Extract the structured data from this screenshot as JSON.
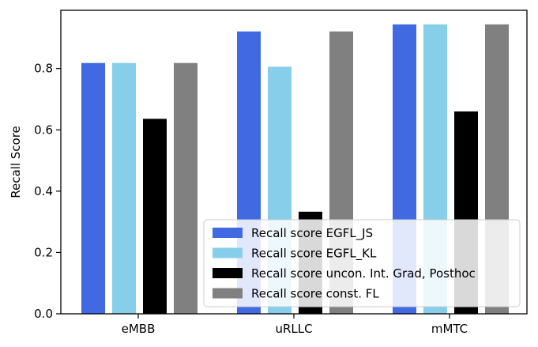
{
  "chart_data": {
    "type": "bar",
    "categories": [
      "eMBB",
      "uRLLC",
      "mMTC"
    ],
    "series": [
      {
        "name": "Recall score EGFL_JS",
        "color": "#4169e1",
        "values": [
          0.818,
          0.921,
          0.944
        ]
      },
      {
        "name": "Recall score EGFL_KL",
        "color": "#87ceeb",
        "values": [
          0.818,
          0.806,
          0.944
        ]
      },
      {
        "name": "Recall score uncon. Int. Grad, Posthoc",
        "color": "#000000",
        "values": [
          0.636,
          0.333,
          0.66
        ]
      },
      {
        "name": "Recall score const. FL",
        "color": "#808080",
        "values": [
          0.818,
          0.921,
          0.944
        ]
      }
    ],
    "ylabel": "Recall Score",
    "xlabel": "",
    "ylim": [
      0,
      0.99
    ],
    "yticks": [
      "0.0",
      "0.2",
      "0.4",
      "0.6",
      "0.8"
    ],
    "grid": false,
    "legend_position": "lower-right"
  }
}
